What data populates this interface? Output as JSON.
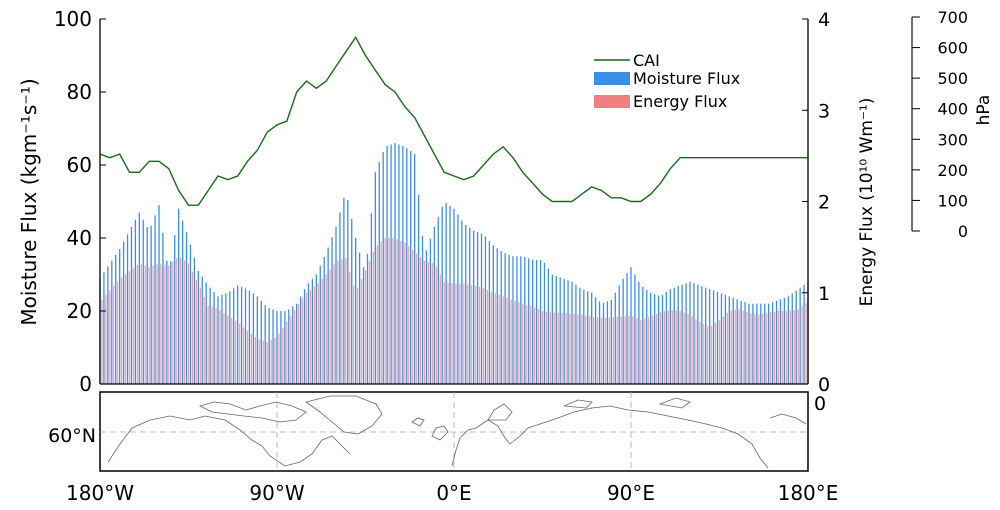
{
  "chart_data": {
    "type": "bar",
    "x_ticks": [
      "180°W",
      "90°W",
      "0°E",
      "90°E",
      "180°E"
    ],
    "x_range": [
      -180,
      180
    ],
    "left_axis": {
      "label": "Moisture Flux (kgm⁻¹s⁻¹)",
      "range": [
        0,
        100
      ],
      "ticks": [
        0,
        20,
        40,
        60,
        80,
        100
      ]
    },
    "right_axis": {
      "label": "Energy Flux (10¹⁰ Wm⁻¹)",
      "range": [
        0,
        4
      ],
      "ticks": [
        0,
        1,
        2,
        3,
        4
      ]
    },
    "far_right_axis": {
      "label": "hPa",
      "range": [
        0,
        700
      ],
      "ticks": [
        0,
        100,
        200,
        300,
        400,
        500,
        600,
        700
      ]
    },
    "legend": {
      "placement": "top-center",
      "entries": [
        "CAI",
        "Moisture Flux",
        "Energy Flux"
      ]
    },
    "colors": {
      "cai": "#1a6b1a",
      "moisture": "#3d8ee8",
      "energy": "#f08080",
      "map_line": "#666666",
      "grid": "#aaaaaa"
    },
    "series": [
      {
        "name": "Moisture Flux",
        "axis": "left",
        "x": [
          -180,
          -170,
          -160,
          -155,
          -150,
          -145,
          -140,
          -135,
          -130,
          -125,
          -120,
          -115,
          -110,
          -105,
          -100,
          -95,
          -90,
          -85,
          -80,
          -75,
          -70,
          -65,
          -60,
          -55,
          -50,
          -45,
          -40,
          -35,
          -30,
          -25,
          -20,
          -15,
          -10,
          -5,
          0,
          5,
          10,
          15,
          20,
          25,
          30,
          35,
          40,
          45,
          50,
          55,
          60,
          65,
          70,
          75,
          80,
          85,
          90,
          95,
          100,
          105,
          110,
          115,
          120,
          125,
          130,
          135,
          140,
          145,
          150,
          155,
          160,
          165,
          170,
          175,
          180
        ],
        "values": [
          29,
          37,
          47,
          42,
          49,
          30,
          48,
          40,
          31,
          27,
          24,
          25,
          27,
          26,
          24,
          21,
          20,
          20,
          22,
          27,
          30,
          36,
          43,
          53,
          40,
          30,
          58,
          65,
          66,
          65,
          63,
          35,
          43,
          50,
          48,
          44,
          42,
          41,
          38,
          36,
          35,
          35,
          34,
          34,
          30,
          29,
          28,
          26,
          25,
          22,
          23,
          28,
          32,
          27,
          25,
          24,
          26,
          27,
          28,
          27,
          26,
          25,
          24,
          23,
          22,
          22,
          22,
          23,
          24,
          26,
          28
        ]
      },
      {
        "name": "Energy Flux",
        "axis": "right",
        "x": [
          -180,
          -170,
          -160,
          -155,
          -150,
          -145,
          -140,
          -135,
          -130,
          -125,
          -120,
          -115,
          -110,
          -105,
          -100,
          -95,
          -90,
          -85,
          -80,
          -75,
          -70,
          -65,
          -60,
          -55,
          -50,
          -45,
          -40,
          -35,
          -30,
          -25,
          -20,
          -15,
          -10,
          -5,
          0,
          5,
          10,
          15,
          20,
          25,
          30,
          35,
          40,
          45,
          50,
          55,
          60,
          65,
          70,
          75,
          80,
          85,
          90,
          95,
          100,
          105,
          110,
          115,
          120,
          125,
          130,
          135,
          140,
          145,
          150,
          155,
          160,
          165,
          170,
          175,
          180
        ],
        "values": [
          0.9,
          1.15,
          1.32,
          1.28,
          1.32,
          1.3,
          1.4,
          1.32,
          1.1,
          0.86,
          0.82,
          0.75,
          0.68,
          0.58,
          0.5,
          0.46,
          0.52,
          0.68,
          0.84,
          1.0,
          1.08,
          1.2,
          1.34,
          1.38,
          1.0,
          1.25,
          1.5,
          1.6,
          1.6,
          1.55,
          1.45,
          1.35,
          1.32,
          1.12,
          1.1,
          1.1,
          1.08,
          1.05,
          1.0,
          0.96,
          0.92,
          0.88,
          0.85,
          0.8,
          0.78,
          0.78,
          0.77,
          0.76,
          0.74,
          0.72,
          0.73,
          0.74,
          0.75,
          0.7,
          0.74,
          0.79,
          0.81,
          0.8,
          0.76,
          0.68,
          0.62,
          0.7,
          0.8,
          0.82,
          0.78,
          0.76,
          0.78,
          0.8,
          0.8,
          0.82,
          0.9
        ]
      },
      {
        "name": "CAI",
        "axis": "left",
        "x": [
          -180,
          -175,
          -170,
          -165,
          -160,
          -155,
          -150,
          -145,
          -140,
          -135,
          -130,
          -125,
          -120,
          -115,
          -110,
          -105,
          -100,
          -95,
          -90,
          -85,
          -80,
          -75,
          -70,
          -65,
          -60,
          -55,
          -50,
          -45,
          -40,
          -35,
          -30,
          -25,
          -20,
          -15,
          -10,
          -5,
          0,
          5,
          10,
          15,
          20,
          25,
          30,
          35,
          40,
          45,
          50,
          55,
          60,
          65,
          70,
          75,
          80,
          85,
          90,
          95,
          100,
          105,
          110,
          115,
          120,
          125,
          130,
          135,
          140,
          145,
          150,
          155,
          160,
          165,
          170,
          175,
          180
        ],
        "values": [
          63,
          62,
          63,
          58,
          58,
          61,
          61,
          59,
          53,
          49,
          49,
          53,
          57,
          56,
          57,
          61,
          64,
          69,
          71,
          72,
          80,
          83,
          81,
          83,
          87,
          91,
          95,
          90,
          86,
          82,
          80,
          76,
          73,
          68,
          63,
          58,
          57,
          56,
          57,
          60,
          63,
          65,
          62,
          58,
          55,
          52,
          50,
          50,
          50,
          52,
          54,
          53,
          51,
          51,
          50,
          50,
          52,
          55,
          59,
          62,
          62,
          62,
          62,
          62,
          62,
          62,
          62,
          62,
          62,
          62,
          62,
          62,
          62
        ]
      }
    ],
    "map": {
      "lat_label": "60°N",
      "corner_label": "0"
    }
  }
}
